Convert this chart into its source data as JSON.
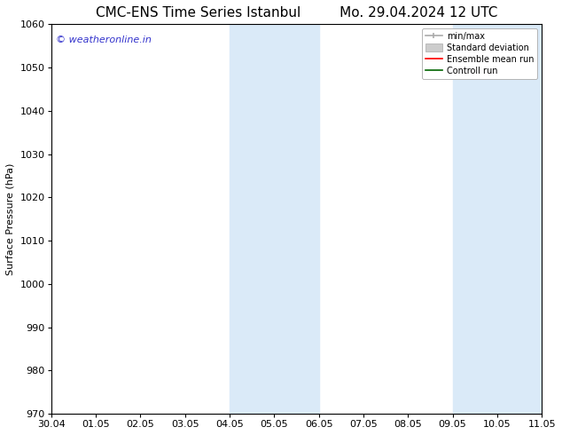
{
  "title_left": "CMC-ENS Time Series Istanbul",
  "title_right": "Mo. 29.04.2024 12 UTC",
  "ylabel": "Surface Pressure (hPa)",
  "ylim": [
    970,
    1060
  ],
  "yticks": [
    970,
    980,
    990,
    1000,
    1010,
    1020,
    1030,
    1040,
    1050,
    1060
  ],
  "xtick_labels": [
    "30.04",
    "01.05",
    "02.05",
    "03.05",
    "04.05",
    "05.05",
    "06.05",
    "07.05",
    "08.05",
    "09.05",
    "10.05",
    "11.05"
  ],
  "watermark": "© weatheronline.in",
  "watermark_color": "#3333cc",
  "bg_color": "#ffffff",
  "plot_bg_color": "#ffffff",
  "shaded_bands": [
    {
      "xstart": 4,
      "xend": 5,
      "color": "#daeaf8"
    },
    {
      "xstart": 5,
      "xend": 6,
      "color": "#daeaf8"
    },
    {
      "xstart": 9,
      "xend": 10,
      "color": "#daeaf8"
    },
    {
      "xstart": 10,
      "xend": 11,
      "color": "#daeaf8"
    }
  ],
  "grid_color": "#dddddd",
  "title_fontsize": 11,
  "axis_fontsize": 8,
  "tick_fontsize": 8,
  "watermark_fontsize": 8
}
